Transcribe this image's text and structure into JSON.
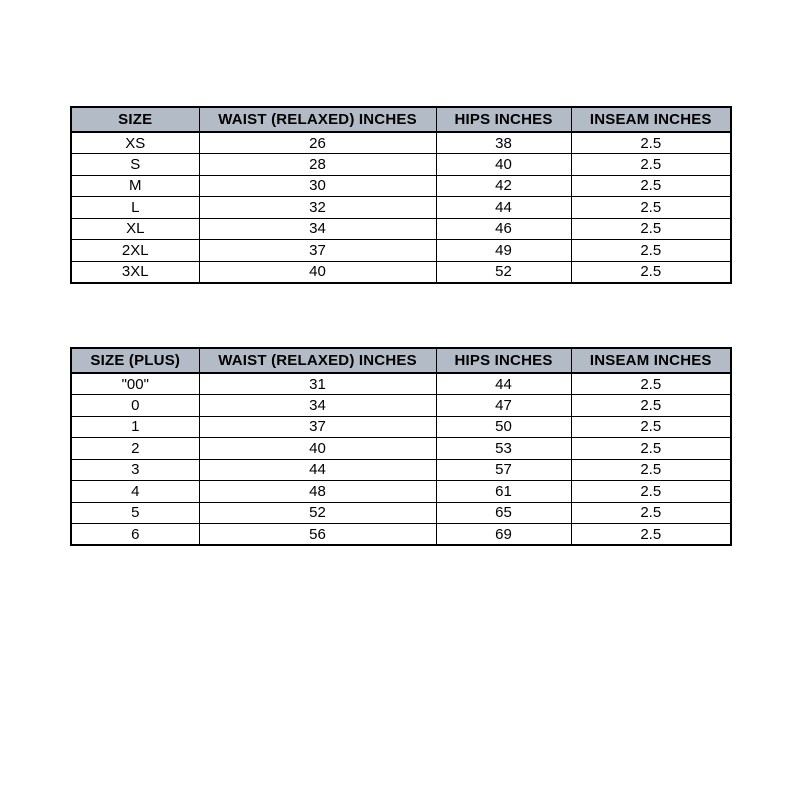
{
  "page": {
    "background": "#ffffff",
    "description": "Garment size chart with regular and plus size tables"
  },
  "colors": {
    "header_bg": "#b3bbc7",
    "border": "#000000",
    "text": "#000000",
    "row_bg": "#ffffff"
  },
  "tables": [
    {
      "id": "regular-size-chart",
      "headers": [
        "SIZE",
        "WAIST (RELAXED) INCHES",
        "HIPS INCHES",
        "INSEAM INCHES"
      ],
      "rows": [
        [
          "XS",
          "26",
          "38",
          "2.5"
        ],
        [
          "S",
          "28",
          "40",
          "2.5"
        ],
        [
          "M",
          "30",
          "42",
          "2.5"
        ],
        [
          "L",
          "32",
          "44",
          "2.5"
        ],
        [
          "XL",
          "34",
          "46",
          "2.5"
        ],
        [
          "2XL",
          "37",
          "49",
          "2.5"
        ],
        [
          "3XL",
          "40",
          "52",
          "2.5"
        ]
      ]
    },
    {
      "id": "plus-size-chart",
      "headers": [
        "SIZE (PLUS)",
        "WAIST (RELAXED) INCHES",
        "HIPS INCHES",
        "INSEAM INCHES"
      ],
      "rows": [
        [
          "\"00\"",
          "31",
          "44",
          "2.5"
        ],
        [
          "0",
          "34",
          "47",
          "2.5"
        ],
        [
          "1",
          "37",
          "50",
          "2.5"
        ],
        [
          "2",
          "40",
          "53",
          "2.5"
        ],
        [
          "3",
          "44",
          "57",
          "2.5"
        ],
        [
          "4",
          "48",
          "61",
          "2.5"
        ],
        [
          "5",
          "52",
          "65",
          "2.5"
        ],
        [
          "6",
          "56",
          "69",
          "2.5"
        ]
      ]
    }
  ]
}
